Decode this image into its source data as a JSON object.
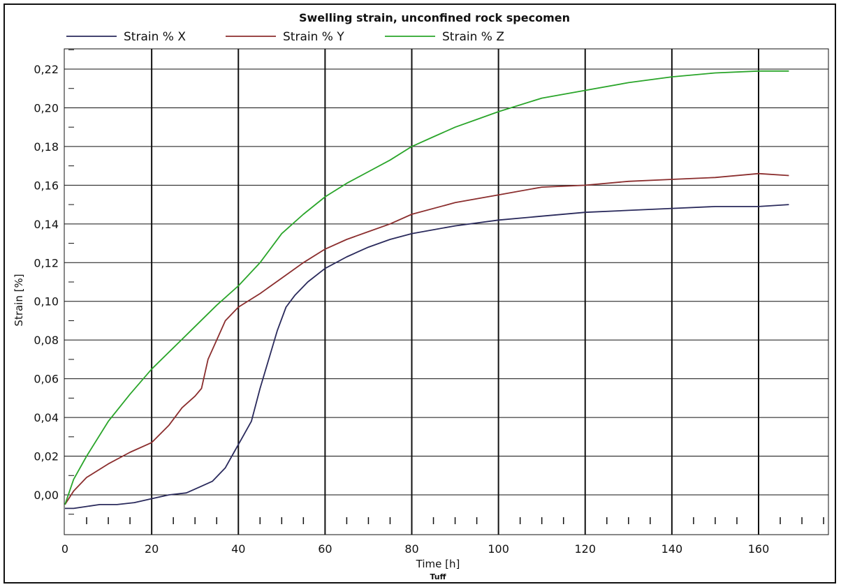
{
  "chart_data": {
    "type": "line",
    "title": "Swelling strain, unconfined rock specomen",
    "xlabel": "Time [h]",
    "ylabel": "Strain [%]",
    "footer": "Tuff",
    "xlim": [
      0,
      176
    ],
    "ylim": [
      -0.02,
      0.23
    ],
    "grid": true,
    "legend_position": "top",
    "x_ticks": [
      0,
      20,
      40,
      60,
      80,
      100,
      120,
      140,
      160
    ],
    "x_tick_labels": [
      "0",
      "20",
      "40",
      "60",
      "80",
      "100",
      "120",
      "140",
      "160"
    ],
    "y_ticks": [
      0,
      0.02,
      0.04,
      0.06,
      0.08,
      0.1,
      0.12,
      0.14,
      0.16,
      0.18,
      0.2,
      0.22
    ],
    "y_tick_labels": [
      "0,00",
      "0,02",
      "0,04",
      "0,06",
      "0,08",
      "0,10",
      "0,12",
      "0,14",
      "0,16",
      "0,18",
      "0,20",
      "0,22"
    ],
    "series": [
      {
        "name": "Strain % X",
        "color": "#2a2a5c",
        "x": [
          0,
          2,
          5,
          8,
          12,
          16,
          20,
          24,
          28,
          31,
          34,
          37,
          39,
          41,
          43,
          45,
          47,
          49,
          51,
          53,
          56,
          60,
          65,
          70,
          75,
          80,
          90,
          100,
          110,
          120,
          130,
          140,
          150,
          160,
          167
        ],
        "y": [
          -0.007,
          -0.007,
          -0.006,
          -0.005,
          -0.005,
          -0.004,
          -0.002,
          0.0,
          0.001,
          0.004,
          0.007,
          0.014,
          0.022,
          0.03,
          0.038,
          0.055,
          0.07,
          0.085,
          0.097,
          0.103,
          0.11,
          0.117,
          0.123,
          0.128,
          0.132,
          0.135,
          0.139,
          0.142,
          0.144,
          0.146,
          0.147,
          0.148,
          0.149,
          0.149,
          0.15
        ]
      },
      {
        "name": "Strain % Y",
        "color": "#8b2e2e",
        "x": [
          0,
          2,
          5,
          10,
          15,
          20,
          24,
          27,
          30,
          31.5,
          33,
          35,
          37,
          40,
          45,
          50,
          55,
          60,
          65,
          70,
          75,
          80,
          90,
          100,
          110,
          120,
          130,
          140,
          150,
          160,
          167
        ],
        "y": [
          -0.005,
          0.002,
          0.009,
          0.016,
          0.022,
          0.027,
          0.036,
          0.045,
          0.051,
          0.055,
          0.07,
          0.08,
          0.09,
          0.097,
          0.104,
          0.112,
          0.12,
          0.127,
          0.132,
          0.136,
          0.14,
          0.145,
          0.151,
          0.155,
          0.159,
          0.16,
          0.162,
          0.163,
          0.164,
          0.166,
          0.165
        ]
      },
      {
        "name": "Strain % Z",
        "color": "#2aa52a",
        "x": [
          0,
          2,
          5,
          10,
          15,
          20,
          25,
          30,
          35,
          40,
          45,
          50,
          55,
          60,
          65,
          70,
          75,
          80,
          85,
          90,
          95,
          100,
          110,
          120,
          130,
          140,
          150,
          160,
          167
        ],
        "y": [
          -0.005,
          0.008,
          0.02,
          0.038,
          0.052,
          0.065,
          0.076,
          0.087,
          0.098,
          0.108,
          0.12,
          0.135,
          0.145,
          0.154,
          0.161,
          0.167,
          0.173,
          0.18,
          0.185,
          0.19,
          0.194,
          0.198,
          0.205,
          0.209,
          0.213,
          0.216,
          0.218,
          0.219,
          0.219
        ]
      }
    ]
  }
}
